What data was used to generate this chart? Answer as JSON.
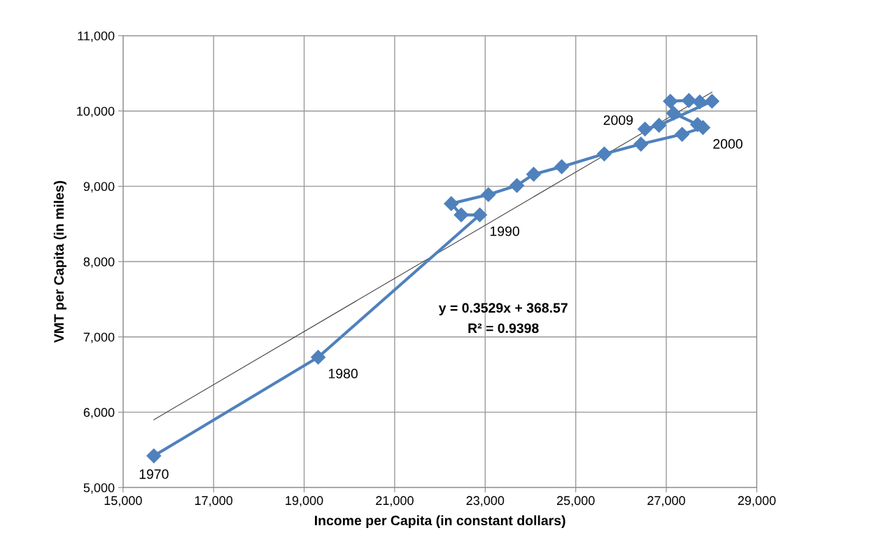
{
  "chart_data": {
    "type": "line",
    "xlabel": "Income per Capita (in constant dollars)",
    "ylabel": "VMT per Capita (in miles)",
    "xlim": [
      15000,
      29000
    ],
    "xticks": [
      {
        "value": 15000,
        "label": "15,000"
      },
      {
        "value": 17000,
        "label": "17,000"
      },
      {
        "value": 19000,
        "label": "19,000"
      },
      {
        "value": 21000,
        "label": "21,000"
      },
      {
        "value": 23000,
        "label": "23,000"
      },
      {
        "value": 25000,
        "label": "25,000"
      },
      {
        "value": 27000,
        "label": "27,000"
      },
      {
        "value": 29000,
        "label": "29,000"
      }
    ],
    "ylim": [
      5000,
      11000
    ],
    "yticks": [
      {
        "value": 5000,
        "label": "5,000"
      },
      {
        "value": 6000,
        "label": "6,000"
      },
      {
        "value": 7000,
        "label": "7,000"
      },
      {
        "value": 8000,
        "label": "8,000"
      },
      {
        "value": 9000,
        "label": "9,000"
      },
      {
        "value": 10000,
        "label": "10,000"
      },
      {
        "value": 11000,
        "label": "11,000"
      }
    ],
    "grid": true,
    "legend": false,
    "series": [
      {
        "marker": "diamond",
        "color": "#4f81bd",
        "x": [
          15680,
          19310,
          22880,
          22470,
          22250,
          23070,
          23700,
          24070,
          24690,
          25630,
          26440,
          27350,
          27810,
          27690,
          27160,
          27090,
          27500,
          27740,
          28010,
          26840,
          26530
        ],
        "values": [
          5420,
          6730,
          8620,
          8620,
          8770,
          8890,
          9010,
          9160,
          9260,
          9430,
          9560,
          9690,
          9780,
          9820,
          9970,
          10130,
          10140,
          10120,
          10130,
          9810,
          9760
        ]
      },
      {
        "marker": "none",
        "color": "#404040",
        "x": [
          15680,
          28010
        ],
        "values": [
          5900,
          10250
        ]
      }
    ],
    "annotations": [
      {
        "text": "1970",
        "x": 15680,
        "y": 5420
      },
      {
        "text": "1980",
        "x": 19310,
        "y": 6730
      },
      {
        "text": "1990",
        "x": 22880,
        "y": 8620
      },
      {
        "text": "2000",
        "x": 27810,
        "y": 9780
      },
      {
        "text": "2009",
        "x": 26530,
        "y": 9760
      },
      "y = 0.3529x + 368.57",
      "R² = 0.9398"
    ]
  }
}
